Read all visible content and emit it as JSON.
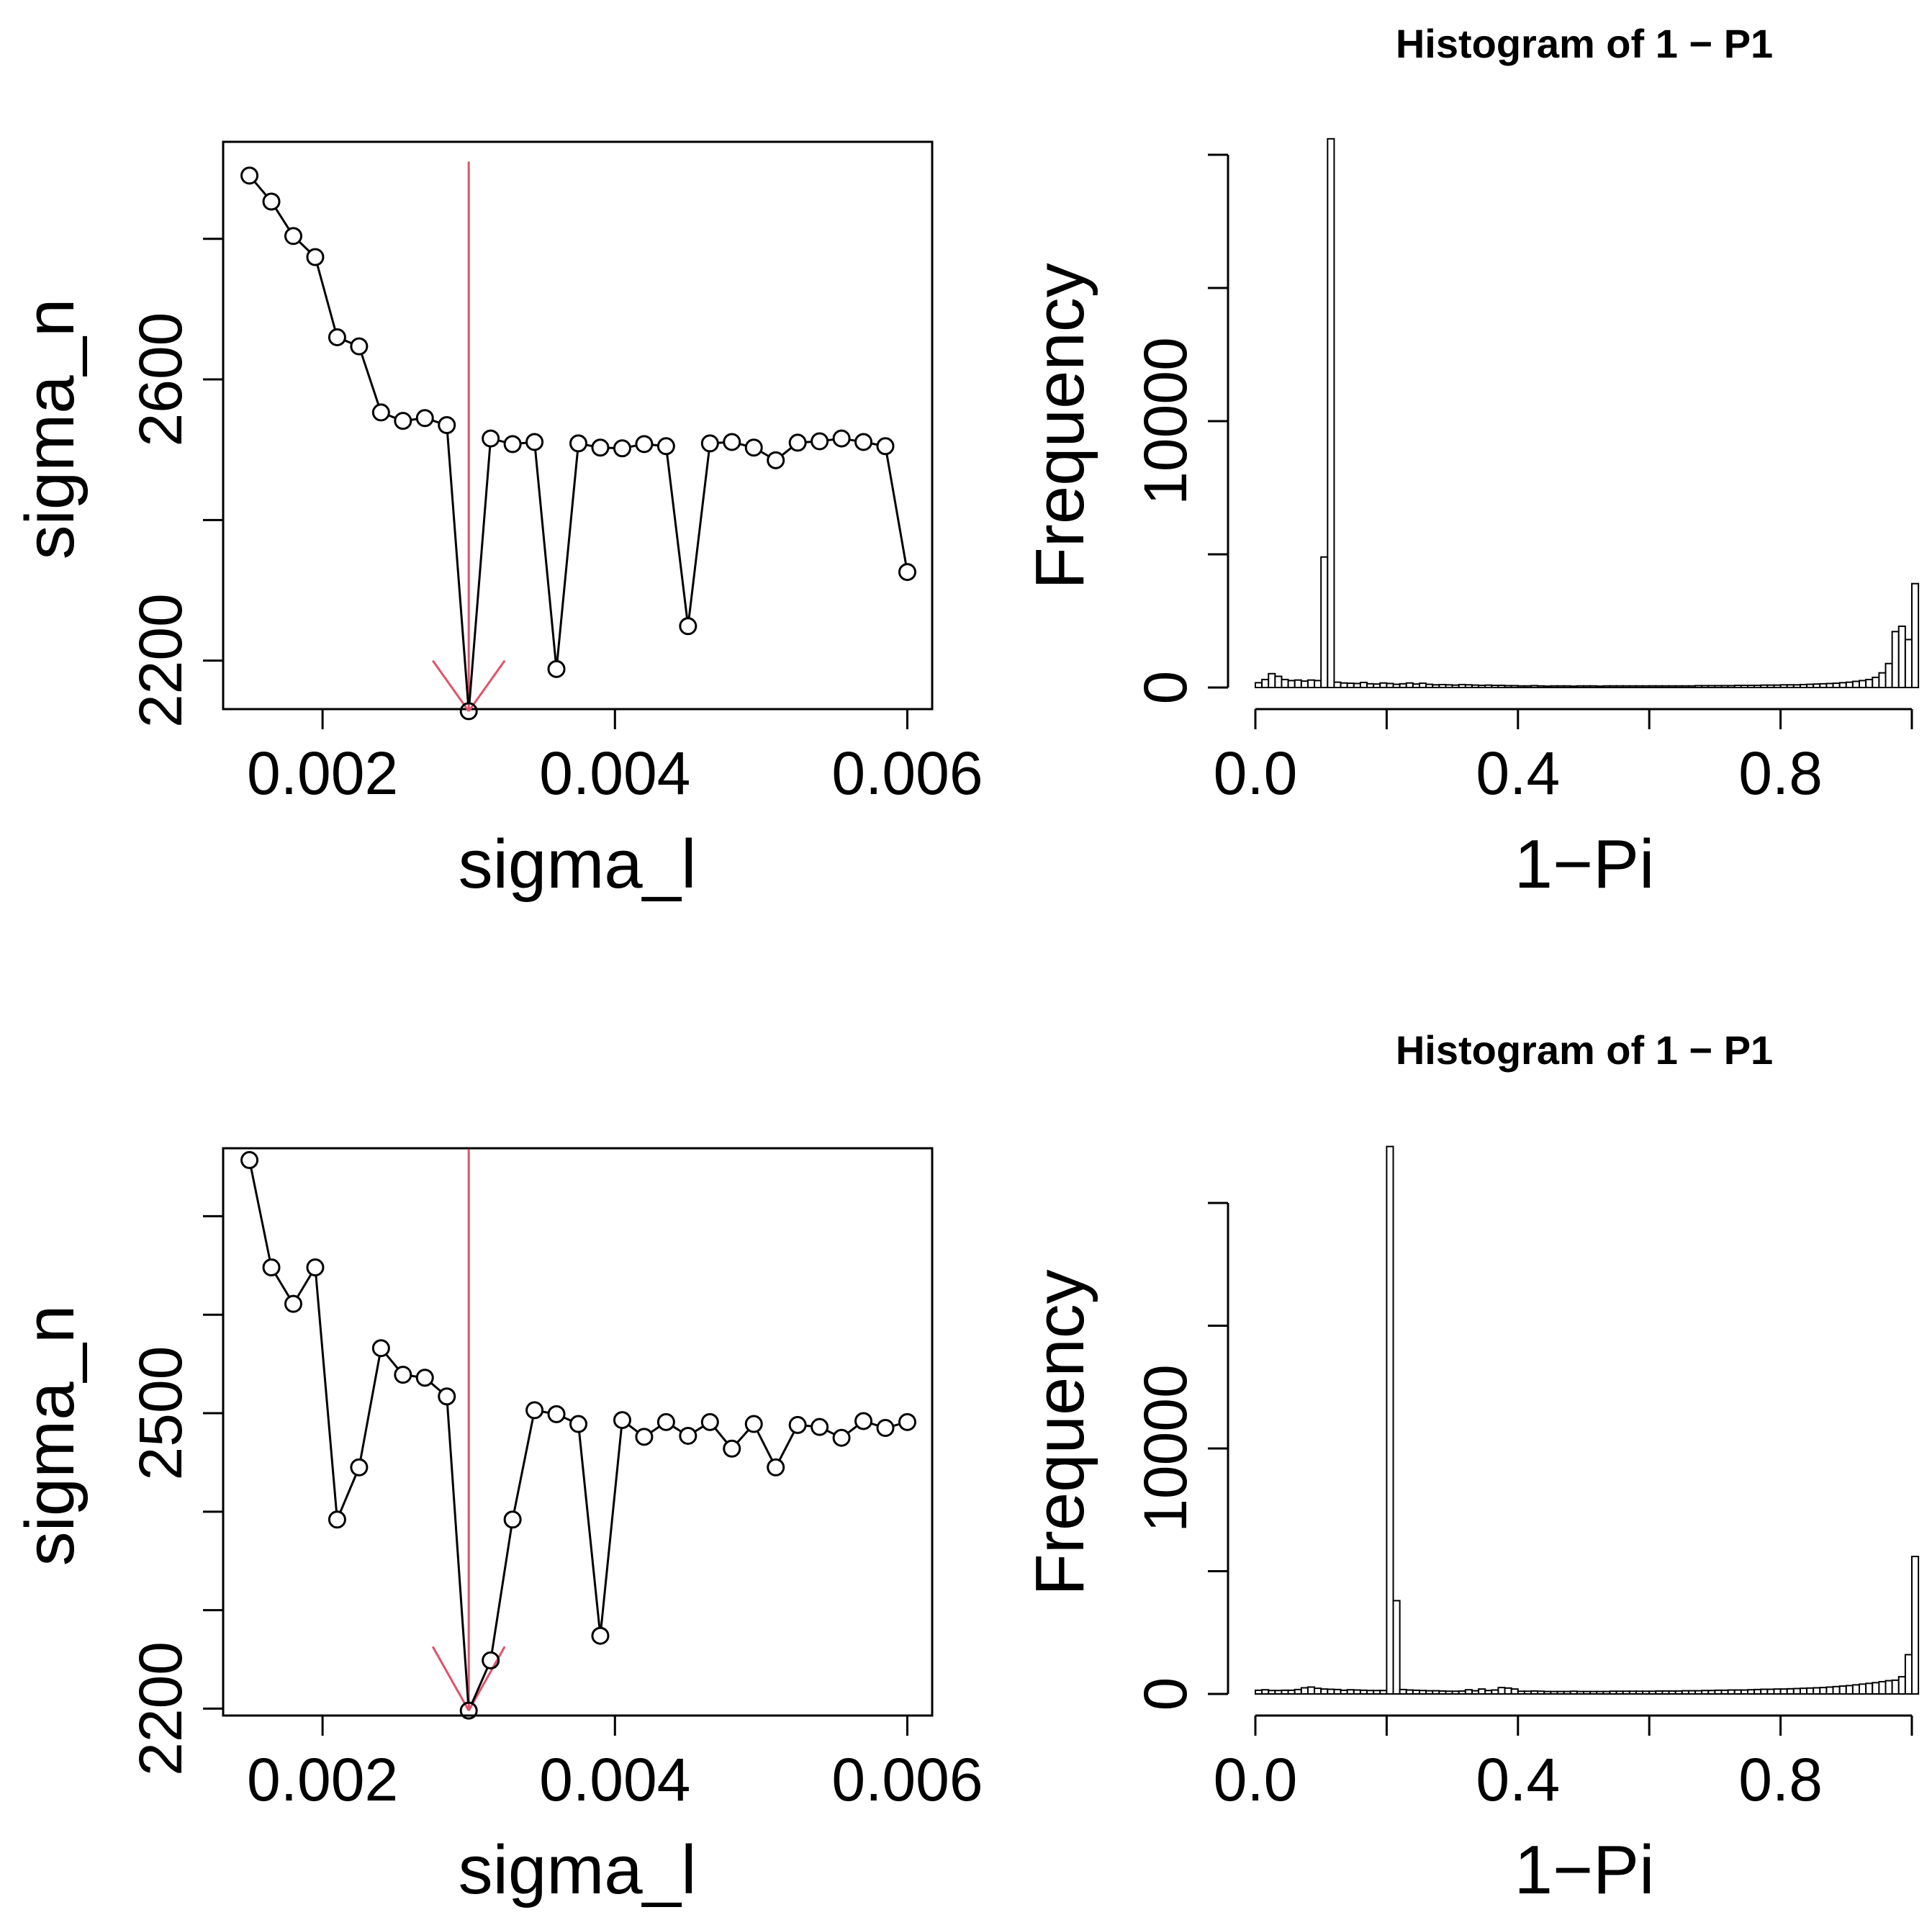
{
  "chart_data": [
    {
      "id": "top-left",
      "type": "line",
      "title": "",
      "xlabel": "sigma_l",
      "ylabel": "sigma_n",
      "xlim": [
        0.00132,
        0.00617
      ],
      "ylim": [
        2131,
        2938
      ],
      "xticks": [
        0.002,
        0.004,
        0.006
      ],
      "xtick_labels": [
        "0.002",
        "0.004",
        "0.006"
      ],
      "yticks": [
        2200,
        2400,
        2600,
        2800
      ],
      "ytick_labels": [
        "2200",
        "",
        "2600",
        ""
      ],
      "x": [
        0.0015,
        0.00165,
        0.0018,
        0.00195,
        0.0021,
        0.00225,
        0.0024,
        0.00255,
        0.0027,
        0.00285,
        0.003,
        0.00315,
        0.0033,
        0.00345,
        0.0036,
        0.00375,
        0.0039,
        0.00405,
        0.0042,
        0.00435,
        0.0045,
        0.00465,
        0.0048,
        0.00495,
        0.0051,
        0.00525,
        0.0054,
        0.00555,
        0.0057,
        0.00585,
        0.006
      ],
      "y": [
        2890,
        2853,
        2804,
        2774,
        2660,
        2647,
        2553,
        2541,
        2545,
        2535,
        2128,
        2516,
        2508,
        2511,
        2188,
        2509,
        2503,
        2502,
        2508,
        2505,
        2249,
        2509,
        2511,
        2503,
        2485,
        2510,
        2512,
        2516,
        2511,
        2505,
        2326
      ],
      "marker": {
        "x": 0.003,
        "y_top": 2910,
        "y_tip": 2128,
        "y_arrow_head": 2200,
        "color": "#DF536B"
      }
    },
    {
      "id": "top-right",
      "type": "bar",
      "title": "Histogram of 1 − P1",
      "xlabel": "1−Pi",
      "ylabel": "Frequency",
      "xlim": [
        0,
        1
      ],
      "ylim": [
        0,
        20000
      ],
      "xticks": [
        0,
        0.2,
        0.4,
        0.6,
        0.8,
        1.0
      ],
      "xtick_labels": [
        "0.0",
        "",
        "0.4",
        "",
        "0.8",
        ""
      ],
      "yticks": [
        0,
        5000,
        10000,
        15000,
        20000
      ],
      "ytick_labels": [
        "0",
        "",
        "10000",
        "",
        ""
      ],
      "bin_width": 0.01,
      "values": [
        180,
        300,
        520,
        420,
        300,
        260,
        280,
        240,
        280,
        260,
        4900,
        20600,
        200,
        170,
        160,
        150,
        190,
        140,
        130,
        170,
        150,
        120,
        140,
        170,
        130,
        160,
        120,
        100,
        110,
        100,
        90,
        110,
        100,
        90,
        80,
        90,
        80,
        80,
        70,
        70,
        60,
        60,
        70,
        60,
        50,
        60,
        60,
        60,
        50,
        60,
        60,
        60,
        50,
        60,
        60,
        60,
        60,
        60,
        60,
        60,
        60,
        60,
        60,
        60,
        60,
        60,
        60,
        70,
        70,
        70,
        70,
        70,
        70,
        80,
        80,
        80,
        80,
        90,
        90,
        90,
        100,
        100,
        100,
        110,
        120,
        130,
        140,
        150,
        160,
        180,
        200,
        230,
        260,
        300,
        380,
        550,
        900,
        2100,
        2300,
        1800,
        3900
      ]
    },
    {
      "id": "bottom-left",
      "type": "line",
      "title": "",
      "xlabel": "sigma_l",
      "ylabel": "sigma_n",
      "xlim": [
        0.00132,
        0.00617
      ],
      "ylim": [
        2193,
        2769
      ],
      "xticks": [
        0.002,
        0.004,
        0.006
      ],
      "xtick_labels": [
        "0.002",
        "0.004",
        "0.006"
      ],
      "yticks": [
        2200,
        2300,
        2400,
        2500,
        2600,
        2700
      ],
      "ytick_labels": [
        "2200",
        "",
        "",
        "2500",
        "",
        ""
      ],
      "x": [
        0.0015,
        0.00165,
        0.0018,
        0.00195,
        0.0021,
        0.00225,
        0.0024,
        0.00255,
        0.0027,
        0.00285,
        0.003,
        0.00315,
        0.0033,
        0.00345,
        0.0036,
        0.00375,
        0.0039,
        0.00405,
        0.0042,
        0.00435,
        0.0045,
        0.00465,
        0.0048,
        0.00495,
        0.0051,
        0.00525,
        0.0054,
        0.00555,
        0.0057,
        0.00585,
        0.006
      ],
      "y": [
        2757,
        2648,
        2611,
        2648,
        2392,
        2445,
        2566,
        2539,
        2536,
        2517,
        2198,
        2249,
        2392,
        2503,
        2499,
        2489,
        2274,
        2493,
        2476,
        2491,
        2477,
        2491,
        2464,
        2489,
        2445,
        2488,
        2486,
        2475,
        2492,
        2485,
        2491
      ],
      "marker": {
        "x": 0.003,
        "y_top": 2768,
        "y_tip": 2198,
        "y_arrow_head": 2263,
        "color": "#DF536B"
      }
    },
    {
      "id": "bottom-right",
      "type": "bar",
      "title": "Histogram of 1 − P1",
      "xlabel": "1−Pi",
      "ylabel": "Frequency",
      "xlim": [
        0,
        1
      ],
      "ylim": [
        0,
        20000
      ],
      "xticks": [
        0,
        0.2,
        0.4,
        0.6,
        0.8,
        1.0
      ],
      "xtick_labels": [
        "0.0",
        "",
        "0.4",
        "",
        "0.8",
        ""
      ],
      "yticks": [
        0,
        5000,
        10000,
        15000,
        20000
      ],
      "ytick_labels": [
        "0",
        "",
        "10000",
        "",
        ""
      ],
      "bin_width": 0.01,
      "values": [
        150,
        170,
        140,
        140,
        150,
        150,
        180,
        250,
        280,
        230,
        200,
        190,
        180,
        150,
        170,
        160,
        150,
        140,
        140,
        140,
        22300,
        3800,
        180,
        160,
        150,
        140,
        130,
        130,
        120,
        110,
        110,
        120,
        170,
        130,
        200,
        140,
        160,
        260,
        240,
        200,
        110,
        110,
        120,
        110,
        100,
        100,
        100,
        100,
        110,
        100,
        100,
        100,
        100,
        100,
        110,
        110,
        110,
        110,
        110,
        110,
        110,
        120,
        120,
        120,
        120,
        130,
        130,
        130,
        140,
        140,
        150,
        150,
        160,
        160,
        160,
        170,
        180,
        190,
        190,
        200,
        200,
        210,
        220,
        230,
        240,
        250,
        260,
        280,
        300,
        320,
        340,
        370,
        400,
        430,
        460,
        500,
        540,
        560,
        700,
        1600,
        5600
      ]
    }
  ]
}
